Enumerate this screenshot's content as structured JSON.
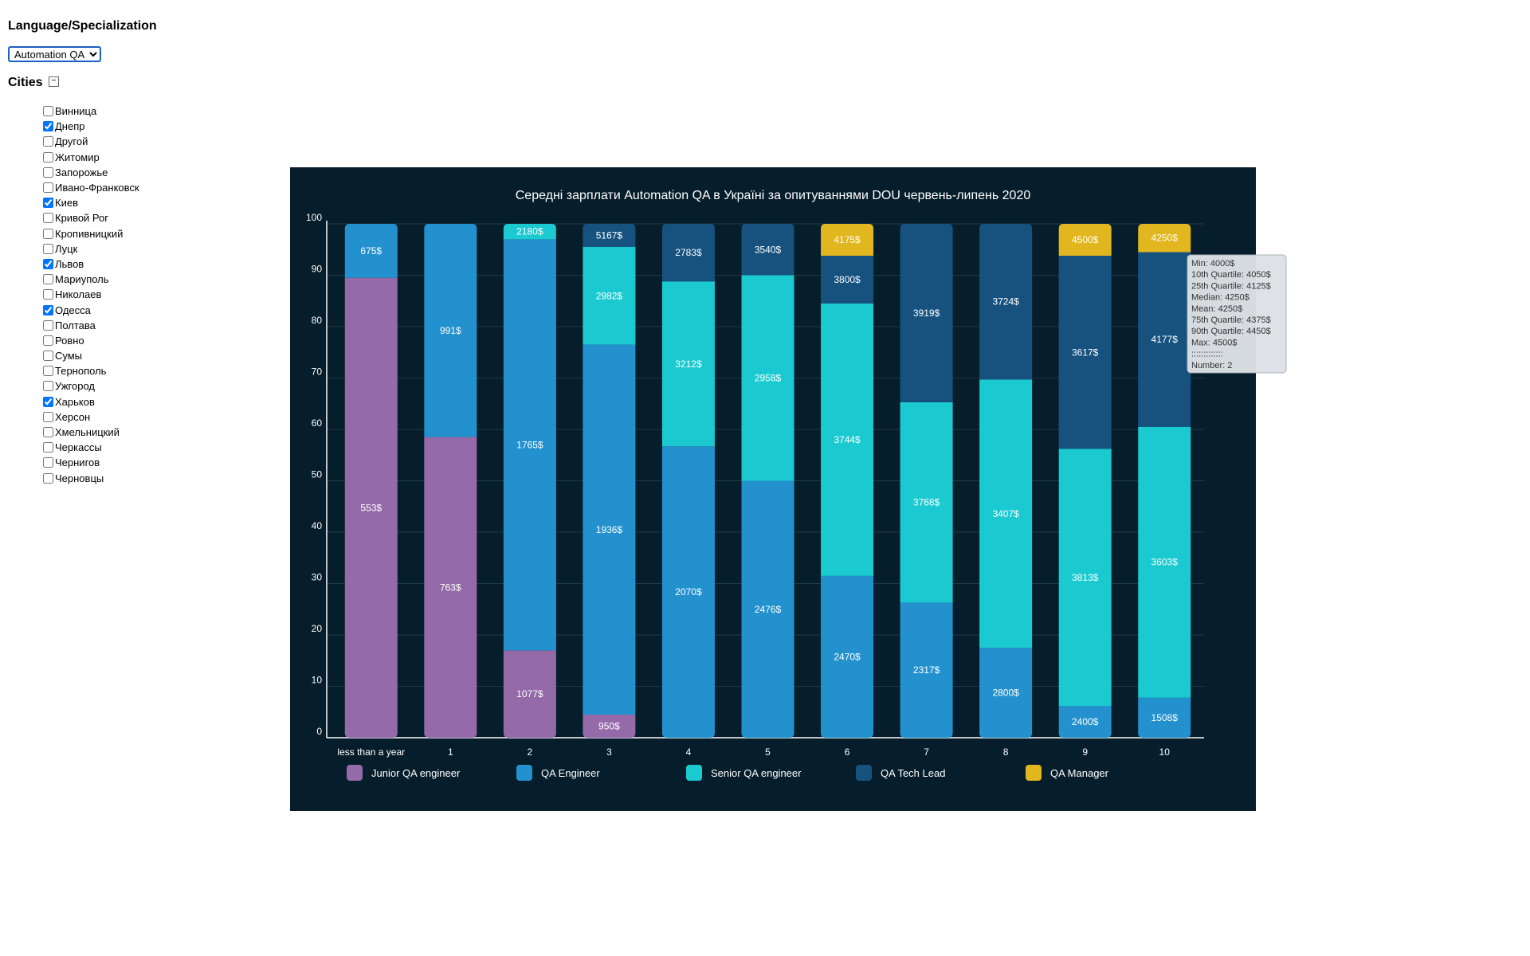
{
  "controls": {
    "language_heading": "Language/Specialization",
    "language_selected": "Automation QA",
    "cities_heading": "Cities",
    "collapse_icon": "minus-box-icon",
    "cities": [
      {
        "name": "Винница",
        "checked": false
      },
      {
        "name": "Днепр",
        "checked": true
      },
      {
        "name": "Другой",
        "checked": false
      },
      {
        "name": "Житомир",
        "checked": false
      },
      {
        "name": "Запорожье",
        "checked": false
      },
      {
        "name": "Ивано-Франковск",
        "checked": false
      },
      {
        "name": "Киев",
        "checked": true
      },
      {
        "name": "Кривой Рог",
        "checked": false
      },
      {
        "name": "Кропивницкий",
        "checked": false
      },
      {
        "name": "Луцк",
        "checked": false
      },
      {
        "name": "Львов",
        "checked": true
      },
      {
        "name": "Мариуполь",
        "checked": false
      },
      {
        "name": "Николаев",
        "checked": false
      },
      {
        "name": "Одесса",
        "checked": true
      },
      {
        "name": "Полтава",
        "checked": false
      },
      {
        "name": "Ровно",
        "checked": false
      },
      {
        "name": "Сумы",
        "checked": false
      },
      {
        "name": "Тернополь",
        "checked": false
      },
      {
        "name": "Ужгород",
        "checked": false
      },
      {
        "name": "Харьков",
        "checked": true
      },
      {
        "name": "Херсон",
        "checked": false
      },
      {
        "name": "Хмельницкий",
        "checked": false
      },
      {
        "name": "Черкассы",
        "checked": false
      },
      {
        "name": "Чернигов",
        "checked": false
      },
      {
        "name": "Черновцы",
        "checked": false
      }
    ]
  },
  "colors": {
    "background": "#061d2b",
    "grid": "#1e3a48",
    "Junior QA engineer": "#946aa8",
    "QA Engineer": "#2491cf",
    "Senior QA engineer": "#1bcad0",
    "QA Tech Lead": "#17527f",
    "QA Manager": "#e2b61e"
  },
  "chart_data": {
    "type": "bar",
    "stacked": true,
    "title": "Середні зарплати Automation QA в Україні за опитуваннями DOU червень-липень 2020",
    "xlabel": "",
    "ylabel": "",
    "ylim": [
      0,
      100
    ],
    "yticks": [
      0,
      10,
      20,
      30,
      40,
      50,
      60,
      70,
      80,
      90,
      100
    ],
    "grid": true,
    "legend_position": "bottom",
    "categories": [
      "less than a year",
      "1",
      "2",
      "3",
      "4",
      "5",
      "6",
      "7",
      "8",
      "9",
      "10"
    ],
    "series": [
      {
        "name": "Junior QA engineer",
        "values": [
          89.5,
          58.5,
          17.0,
          4.5,
          0,
          0,
          0,
          0,
          0,
          0,
          0
        ],
        "labels": [
          "553$",
          "763$",
          "1077$",
          "950$",
          "",
          "",
          "",
          "",
          "",
          "",
          ""
        ]
      },
      {
        "name": "QA Engineer",
        "values": [
          10.5,
          41.5,
          80.0,
          72.0,
          56.7,
          50.0,
          31.5,
          26.3,
          17.5,
          6.2,
          7.8
        ],
        "labels": [
          "675$",
          "991$",
          "1765$",
          "1936$",
          "2070$",
          "2476$",
          "2470$",
          "2317$",
          "2800$",
          "2400$",
          "1508$"
        ]
      },
      {
        "name": "Senior QA engineer",
        "values": [
          0,
          0,
          3.0,
          19.0,
          32.1,
          40.0,
          53.0,
          39.0,
          52.2,
          50.0,
          52.7
        ],
        "labels": [
          "",
          "",
          "2180$",
          "2982$",
          "3212$",
          "2958$",
          "3744$",
          "3768$",
          "3407$",
          "3813$",
          "3603$"
        ]
      },
      {
        "name": "QA Tech Lead",
        "values": [
          0,
          0,
          0,
          4.5,
          11.2,
          10.0,
          9.3,
          34.7,
          30.3,
          37.6,
          34.0
        ],
        "labels": [
          "",
          "",
          "",
          "5167$",
          "2783$",
          "3540$",
          "3800$",
          "3919$",
          "3724$",
          "3617$",
          "4177$"
        ]
      },
      {
        "name": "QA Manager",
        "values": [
          0,
          0,
          0,
          0,
          0,
          0,
          6.2,
          0,
          0,
          6.2,
          5.5
        ],
        "labels": [
          "",
          "",
          "",
          "",
          "",
          "",
          "4175$",
          "",
          "",
          "4500$",
          "4250$"
        ]
      }
    ]
  },
  "tooltip": {
    "lines": [
      "Min: 4000$",
      "10th Quartile: 4050$",
      "25th Quartile: 4125$",
      "Median: 4250$",
      "Mean: 4250$",
      "75th Quartile: 4375$",
      "90th Quartile: 4450$",
      "Max: 4500$",
      ":::::::::::::",
      "Number: 2"
    ]
  }
}
